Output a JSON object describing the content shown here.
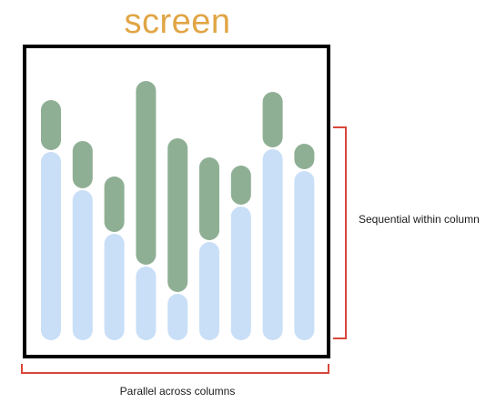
{
  "title": "screen",
  "label_right": "Sequential within column",
  "label_bottom": "Parallel across columns",
  "colors": {
    "title": "#E0A545",
    "frame": "#000000",
    "green": "#8FAF94",
    "blue": "#C9DFF7",
    "bracket": "#D9463A"
  },
  "columns": [
    {
      "blue_top": 0.69,
      "green_top": 0.88
    },
    {
      "blue_top": 0.55,
      "green_top": 0.73
    },
    {
      "blue_top": 0.39,
      "green_top": 0.6
    },
    {
      "blue_top": 0.27,
      "green_top": 0.95
    },
    {
      "blue_top": 0.17,
      "green_top": 0.74
    },
    {
      "blue_top": 0.36,
      "green_top": 0.67
    },
    {
      "blue_top": 0.49,
      "green_top": 0.64
    },
    {
      "blue_top": 0.7,
      "green_top": 0.91
    },
    {
      "blue_top": 0.62,
      "green_top": 0.72
    }
  ]
}
